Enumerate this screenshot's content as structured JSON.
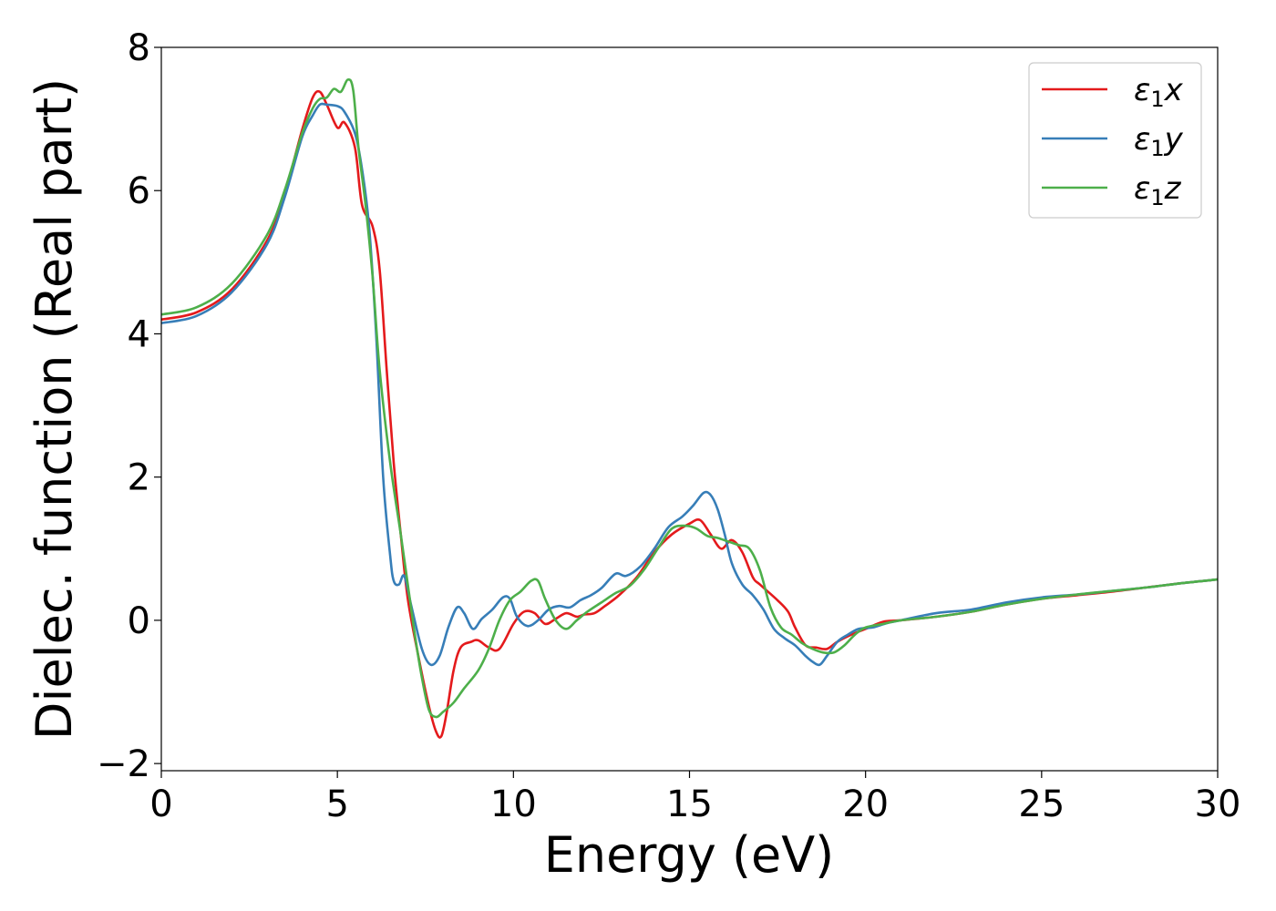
{
  "chart_data": {
    "type": "line",
    "title": "",
    "xlabel": "Energy (eV)",
    "ylabel": "Dielec. function (Real part)",
    "xlim": [
      0,
      30
    ],
    "ylim": [
      -2.1,
      8.0
    ],
    "xticks": [
      0,
      5,
      10,
      15,
      20,
      25,
      30
    ],
    "xtick_labels": [
      "0",
      "5",
      "10",
      "15",
      "20",
      "25",
      "30"
    ],
    "yticks": [
      -2,
      0,
      2,
      4,
      6,
      8
    ],
    "ytick_labels": [
      "−2",
      "0",
      "2",
      "4",
      "6",
      "8"
    ],
    "grid": false,
    "legend_position": "top-right",
    "series": [
      {
        "name": "ε1x",
        "label_base": "ε",
        "label_sub": "1",
        "label_var": "x",
        "color": "#e41a1c",
        "x": [
          0,
          1,
          2,
          3,
          3.5,
          4,
          4.3,
          4.5,
          4.7,
          5.0,
          5.2,
          5.5,
          5.7,
          6.0,
          6.2,
          6.4,
          6.6,
          6.8,
          7.0,
          7.3,
          7.6,
          7.8,
          7.95,
          8.1,
          8.3,
          8.5,
          8.8,
          9.0,
          9.3,
          9.6,
          10.0,
          10.3,
          10.6,
          10.9,
          11.2,
          11.5,
          11.8,
          12.0,
          12.3,
          12.6,
          13.0,
          13.5,
          14.0,
          14.5,
          15.0,
          15.3,
          15.6,
          15.9,
          16.2,
          16.5,
          16.8,
          17.0,
          17.5,
          17.8,
          18.0,
          18.3,
          18.6,
          18.9,
          19.2,
          19.6,
          20.0,
          20.5,
          21.0,
          22.0,
          23.0,
          24.0,
          25.0,
          26.0,
          27.0,
          28.0,
          29.0,
          30.0
        ],
        "y": [
          4.2,
          4.3,
          4.62,
          5.3,
          5.95,
          6.85,
          7.3,
          7.38,
          7.2,
          6.88,
          6.95,
          6.6,
          5.8,
          5.5,
          4.9,
          3.5,
          2.2,
          1.2,
          0.3,
          -0.5,
          -1.2,
          -1.55,
          -1.62,
          -1.3,
          -0.7,
          -0.38,
          -0.3,
          -0.28,
          -0.38,
          -0.4,
          -0.05,
          0.12,
          0.1,
          -0.05,
          0.02,
          0.1,
          0.05,
          0.08,
          0.1,
          0.2,
          0.35,
          0.6,
          0.95,
          1.2,
          1.35,
          1.4,
          1.2,
          1.0,
          1.12,
          0.95,
          0.6,
          0.5,
          0.28,
          0.12,
          -0.1,
          -0.35,
          -0.38,
          -0.4,
          -0.3,
          -0.2,
          -0.12,
          -0.02,
          0.0,
          0.05,
          0.12,
          0.22,
          0.3,
          0.35,
          0.4,
          0.46,
          0.52,
          0.57
        ]
      },
      {
        "name": "ε1y",
        "label_base": "ε",
        "label_sub": "1",
        "label_var": "y",
        "color": "#377eb8",
        "x": [
          0,
          1,
          2,
          3,
          3.5,
          4,
          4.3,
          4.5,
          4.7,
          5.0,
          5.2,
          5.5,
          5.7,
          5.9,
          6.1,
          6.3,
          6.5,
          6.6,
          6.75,
          6.9,
          7.1,
          7.4,
          7.65,
          7.9,
          8.15,
          8.4,
          8.6,
          8.85,
          9.1,
          9.4,
          9.7,
          9.9,
          10.1,
          10.4,
          10.7,
          11.0,
          11.3,
          11.6,
          11.9,
          12.2,
          12.5,
          12.9,
          13.2,
          13.6,
          14.0,
          14.4,
          14.8,
          15.1,
          15.4,
          15.6,
          15.8,
          16.0,
          16.2,
          16.5,
          16.8,
          17.1,
          17.4,
          17.7,
          18.0,
          18.3,
          18.5,
          18.7,
          18.9,
          19.2,
          19.5,
          19.8,
          20.2,
          20.6,
          21.0,
          22.0,
          23.0,
          24.0,
          25.0,
          26.0,
          27.0,
          28.0,
          29.0,
          30.0
        ],
        "y": [
          4.15,
          4.25,
          4.58,
          5.25,
          5.9,
          6.75,
          7.05,
          7.2,
          7.2,
          7.18,
          7.1,
          6.8,
          6.3,
          5.5,
          4.0,
          2.0,
          0.9,
          0.55,
          0.5,
          0.62,
          0.2,
          -0.4,
          -0.62,
          -0.5,
          -0.1,
          0.18,
          0.1,
          -0.12,
          0.02,
          0.15,
          0.32,
          0.3,
          0.05,
          -0.08,
          0.0,
          0.15,
          0.2,
          0.18,
          0.28,
          0.35,
          0.45,
          0.65,
          0.62,
          0.75,
          1.0,
          1.3,
          1.45,
          1.6,
          1.78,
          1.75,
          1.55,
          1.2,
          0.8,
          0.5,
          0.35,
          0.15,
          -0.12,
          -0.25,
          -0.35,
          -0.5,
          -0.58,
          -0.62,
          -0.5,
          -0.3,
          -0.2,
          -0.12,
          -0.1,
          -0.04,
          0.0,
          0.1,
          0.15,
          0.25,
          0.32,
          0.36,
          0.41,
          0.46,
          0.52,
          0.57
        ]
      },
      {
        "name": "ε1z",
        "label_base": "ε",
        "label_sub": "1",
        "label_var": "z",
        "color": "#4daf4a",
        "x": [
          0,
          1,
          2,
          3,
          3.5,
          4,
          4.3,
          4.5,
          4.7,
          4.9,
          5.1,
          5.3,
          5.45,
          5.6,
          5.8,
          6.0,
          6.2,
          6.5,
          6.8,
          7.0,
          7.2,
          7.4,
          7.6,
          7.8,
          8.0,
          8.3,
          8.6,
          9.0,
          9.3,
          9.6,
          9.9,
          10.2,
          10.5,
          10.7,
          10.9,
          11.2,
          11.5,
          11.8,
          12.1,
          12.5,
          12.9,
          13.3,
          13.7,
          14.1,
          14.5,
          14.9,
          15.2,
          15.5,
          15.8,
          16.1,
          16.4,
          16.7,
          17.0,
          17.3,
          17.6,
          17.9,
          18.2,
          18.5,
          18.8,
          19.1,
          19.4,
          19.7,
          20.0,
          20.5,
          21.0,
          22.0,
          23.0,
          24.0,
          25.0,
          26.0,
          27.0,
          28.0,
          29.0,
          30.0
        ],
        "y": [
          4.27,
          4.37,
          4.7,
          5.38,
          6.0,
          6.8,
          7.15,
          7.28,
          7.3,
          7.42,
          7.38,
          7.55,
          7.4,
          6.6,
          5.8,
          4.8,
          3.5,
          2.2,
          1.2,
          0.5,
          -0.2,
          -0.8,
          -1.25,
          -1.35,
          -1.28,
          -1.15,
          -0.95,
          -0.7,
          -0.4,
          0.0,
          0.28,
          0.4,
          0.55,
          0.55,
          0.3,
          0.0,
          -0.12,
          0.0,
          0.12,
          0.25,
          0.38,
          0.48,
          0.7,
          1.0,
          1.28,
          1.32,
          1.28,
          1.18,
          1.15,
          1.1,
          1.05,
          1.0,
          0.7,
          0.18,
          -0.1,
          -0.2,
          -0.32,
          -0.4,
          -0.45,
          -0.45,
          -0.35,
          -0.2,
          -0.1,
          -0.05,
          0.0,
          0.05,
          0.12,
          0.22,
          0.3,
          0.36,
          0.41,
          0.46,
          0.52,
          0.57
        ]
      }
    ]
  }
}
